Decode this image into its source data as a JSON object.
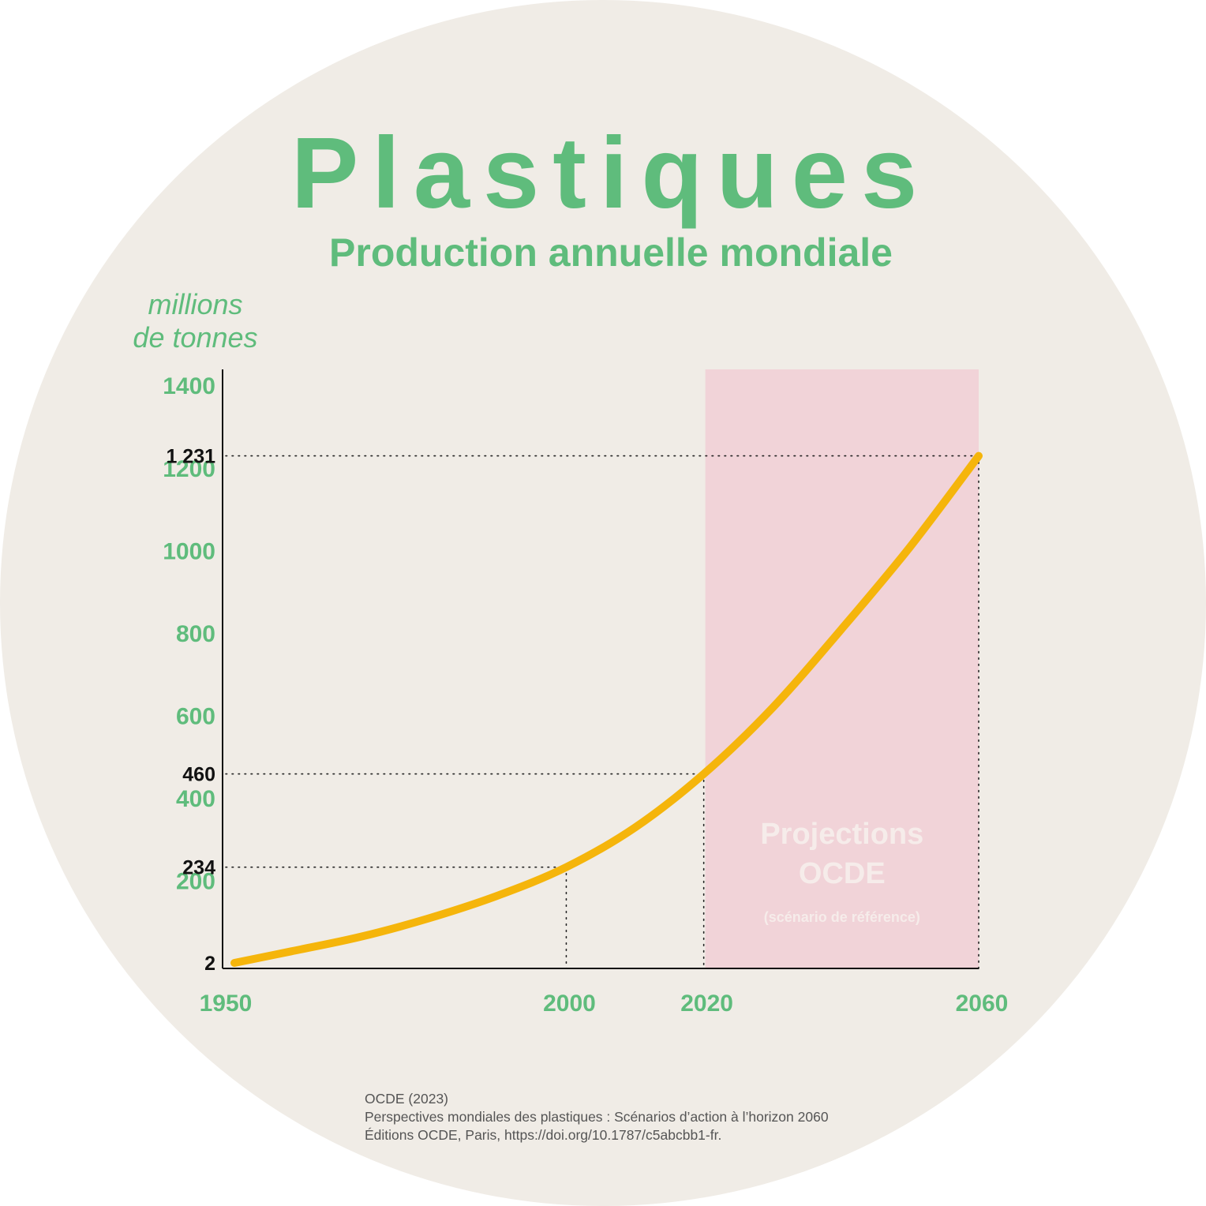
{
  "title": "Plastiques",
  "subtitle": "Production annuelle mondiale",
  "unit_label": [
    "millions",
    "de tonnes"
  ],
  "source": [
    "OCDE (2023)",
    "Perspectives mondiales des plastiques : Scénarios d’action à l’horizon 2060",
    "Éditions OCDE, Paris, https://doi.org/10.1787/c5abcbb1-fr."
  ],
  "colors": {
    "background_circle": "#f0ece6",
    "accent_green": "#5fbc7c",
    "curve": "#f5b50b",
    "projection_zone": "#f1d3d8",
    "projection_text": "#f6ecea"
  },
  "chart_data": {
    "type": "line",
    "title": "Plastiques",
    "subtitle": "Production annuelle mondiale",
    "ylabel": "millions de tonnes",
    "xlim": [
      1950,
      2060
    ],
    "ylim": [
      0,
      1450
    ],
    "x_ticks": [
      "1950",
      "2000",
      "2020",
      "2060"
    ],
    "y_ticks": [
      "1400",
      "1200",
      "1000",
      "800",
      "600",
      "400",
      "200"
    ],
    "y_ticks_values": [
      1400,
      1200,
      1000,
      800,
      600,
      400,
      200
    ],
    "grid": false,
    "series": [
      {
        "x": [
          1950,
          1960,
          1970,
          1980,
          1990,
          2000,
          2010,
          2020,
          2030,
          2040,
          2050,
          2060
        ],
        "y": [
          2,
          30,
          65,
          110,
          165,
          234,
          330,
          460,
          620,
          810,
          1010,
          1231
        ]
      }
    ],
    "highlighted_points": [
      {
        "x": 1950,
        "y": 2,
        "label": "2"
      },
      {
        "x": 2000,
        "y": 234,
        "label": "234"
      },
      {
        "x": 2020,
        "y": 460,
        "label": "460"
      },
      {
        "x": 2060,
        "y": 1231,
        "label": "1 231"
      }
    ],
    "projection_zone": {
      "x_start": 2020,
      "x_end": 2060,
      "label": [
        "Projections",
        "OCDE"
      ],
      "sublabel": "(scénario de référence)"
    }
  }
}
